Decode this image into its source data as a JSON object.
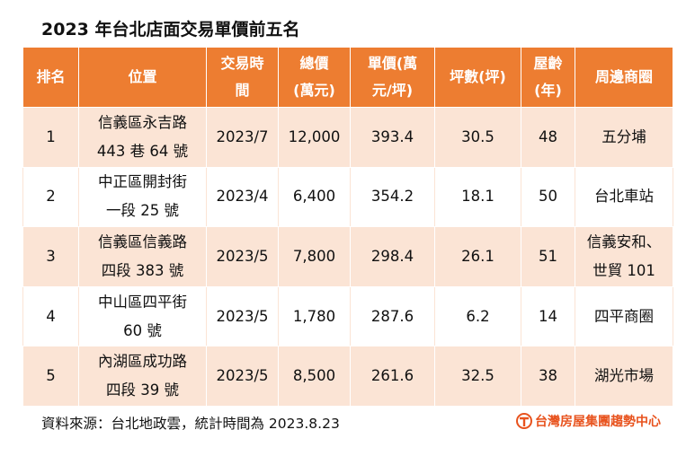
{
  "title": "2023 年台北店面交易單價前五名",
  "headers": {
    "rank": "排名",
    "location": "位置",
    "date": [
      "交易時",
      "間"
    ],
    "total": [
      "總價",
      "(萬元)"
    ],
    "unit": [
      "單價(萬",
      "元/坪)"
    ],
    "area": "坪數(坪)",
    "age": [
      "屋齡",
      "(年)"
    ],
    "district": "周邊商圈"
  },
  "rows": [
    {
      "rank": "1",
      "location": [
        "信義區永吉路",
        "443 巷 64 號"
      ],
      "date": "2023/7",
      "total": "12,000",
      "unit": "393.4",
      "area": "30.5",
      "age": "48",
      "district": [
        "五分埔"
      ]
    },
    {
      "rank": "2",
      "location": [
        "中正區開封街",
        "一段 25 號"
      ],
      "date": "2023/4",
      "total": "6,400",
      "unit": "354.2",
      "area": "18.1",
      "age": "50",
      "district": [
        "台北車站"
      ]
    },
    {
      "rank": "3",
      "location": [
        "信義區信義路",
        "四段 383 號"
      ],
      "date": "2023/5",
      "total": "7,800",
      "unit": "298.4",
      "area": "26.1",
      "age": "51",
      "district": [
        "信義安和、",
        "世貿 101"
      ]
    },
    {
      "rank": "4",
      "location": [
        "中山區四平街",
        "60 號"
      ],
      "date": "2023/5",
      "total": "1,780",
      "unit": "287.6",
      "area": "6.2",
      "age": "14",
      "district": [
        "四平商圈"
      ]
    },
    {
      "rank": "5",
      "location": [
        "內湖區成功路",
        "四段 39 號"
      ],
      "date": "2023/5",
      "total": "8,500",
      "unit": "261.6",
      "area": "32.5",
      "age": "38",
      "district": [
        "湖光市場"
      ]
    }
  ],
  "footer": "資料來源：台北地政雲，統計時間為 2023.8.23",
  "logo": {
    "text": "台灣房屋集團趨勢中心",
    "icon": "taiwan-realty-logo-icon",
    "color": "#E8531E"
  },
  "colors": {
    "header": "#ED7D31",
    "row_alt": "#FBE4D5"
  }
}
